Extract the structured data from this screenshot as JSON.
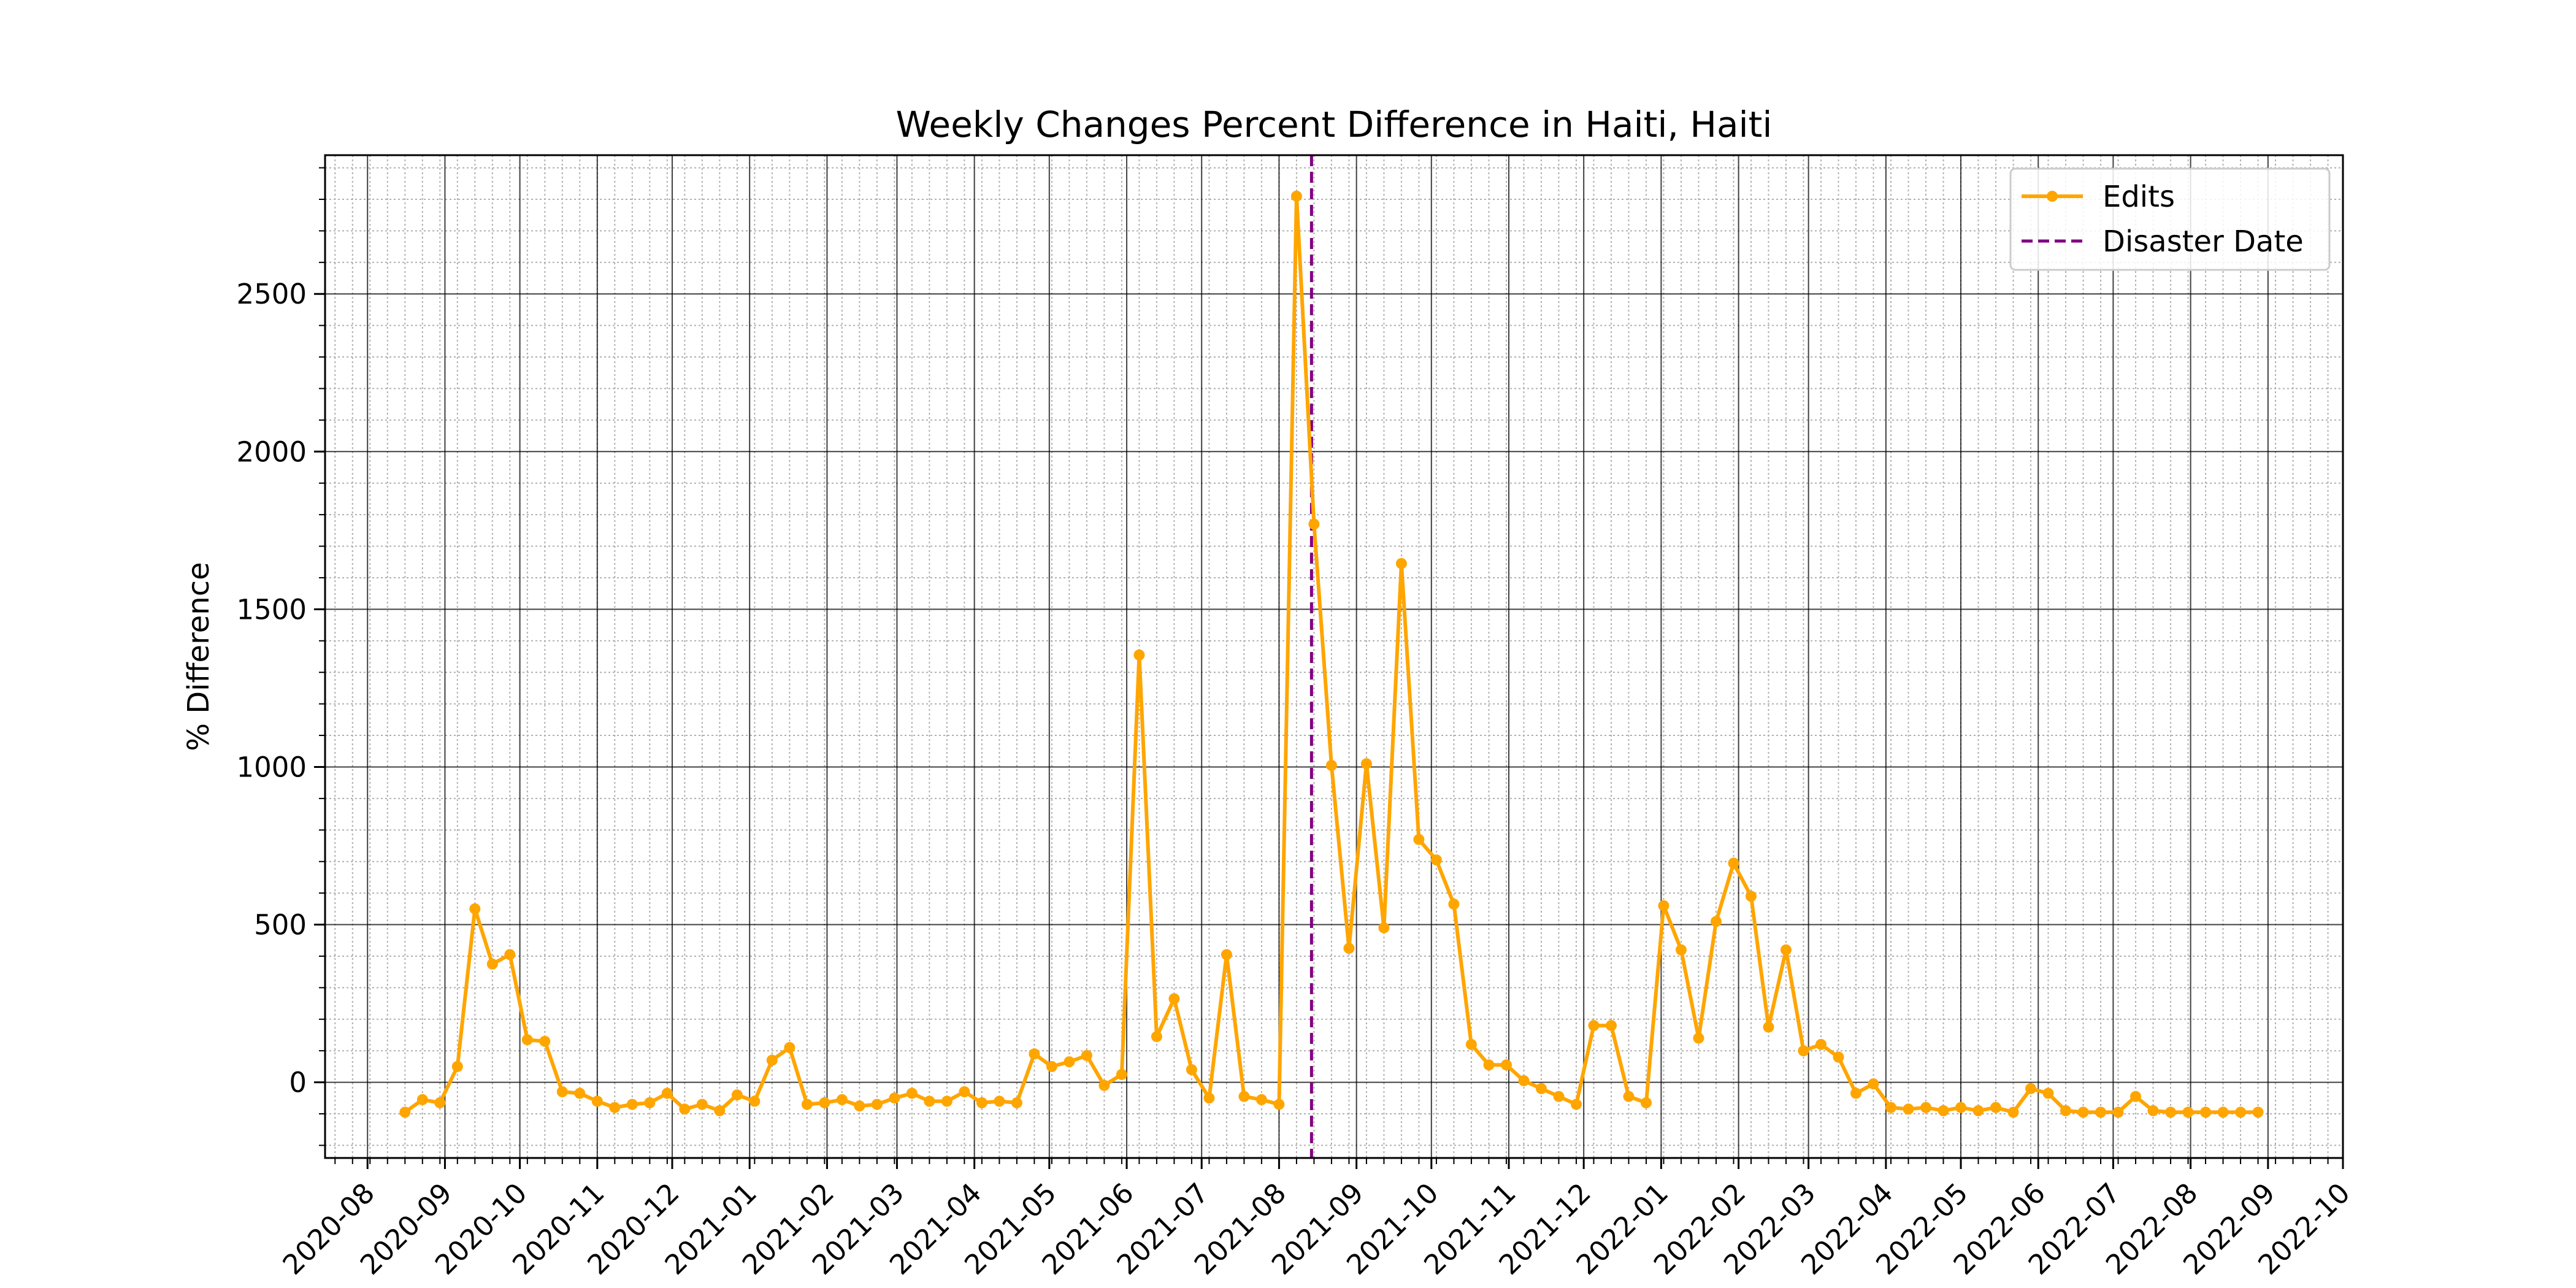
{
  "chart_data": {
    "type": "line",
    "title": "Weekly Changes Percent Difference in Haiti, Haiti",
    "xlabel": "",
    "ylabel": "% Difference",
    "x_axis_type": "date",
    "xlim": [
      "2020-07-15",
      "2022-10-01"
    ],
    "ylim": [
      -240,
      2940
    ],
    "x_ticks": [
      "2020-08",
      "2020-09",
      "2020-10",
      "2020-11",
      "2020-12",
      "2021-01",
      "2021-02",
      "2021-03",
      "2021-04",
      "2021-05",
      "2021-06",
      "2021-07",
      "2021-08",
      "2021-09",
      "2021-10",
      "2021-11",
      "2021-12",
      "2022-01",
      "2022-02",
      "2022-03",
      "2022-04",
      "2022-05",
      "2022-06",
      "2022-07",
      "2022-08",
      "2022-09",
      "2022-10"
    ],
    "y_ticks": [
      0,
      500,
      1000,
      1500,
      2000,
      2500
    ],
    "grid": true,
    "minor_grid": true,
    "legend_position": "top-right",
    "disaster": {
      "label": "Disaster Date",
      "date": "2021-08-14",
      "color": "#800080"
    },
    "series": [
      {
        "name": "Edits",
        "color": "#FFA500",
        "x": [
          "2020-08-16",
          "2020-08-23",
          "2020-08-30",
          "2020-09-06",
          "2020-09-13",
          "2020-09-20",
          "2020-09-27",
          "2020-10-04",
          "2020-10-11",
          "2020-10-18",
          "2020-10-25",
          "2020-11-01",
          "2020-11-08",
          "2020-11-15",
          "2020-11-22",
          "2020-11-29",
          "2020-12-06",
          "2020-12-13",
          "2020-12-20",
          "2020-12-27",
          "2021-01-03",
          "2021-01-10",
          "2021-01-17",
          "2021-01-24",
          "2021-01-31",
          "2021-02-07",
          "2021-02-14",
          "2021-02-21",
          "2021-02-28",
          "2021-03-07",
          "2021-03-14",
          "2021-03-21",
          "2021-03-28",
          "2021-04-04",
          "2021-04-11",
          "2021-04-18",
          "2021-04-25",
          "2021-05-02",
          "2021-05-09",
          "2021-05-16",
          "2021-05-23",
          "2021-05-30",
          "2021-06-06",
          "2021-06-13",
          "2021-06-20",
          "2021-06-27",
          "2021-07-04",
          "2021-07-11",
          "2021-07-18",
          "2021-07-25",
          "2021-08-01",
          "2021-08-08",
          "2021-08-15",
          "2021-08-22",
          "2021-08-29",
          "2021-09-05",
          "2021-09-12",
          "2021-09-19",
          "2021-09-26",
          "2021-10-03",
          "2021-10-10",
          "2021-10-17",
          "2021-10-24",
          "2021-10-31",
          "2021-11-07",
          "2021-11-14",
          "2021-11-21",
          "2021-11-28",
          "2021-12-05",
          "2021-12-12",
          "2021-12-19",
          "2021-12-26",
          "2022-01-02",
          "2022-01-09",
          "2022-01-16",
          "2022-01-23",
          "2022-01-30",
          "2022-02-06",
          "2022-02-13",
          "2022-02-20",
          "2022-02-27",
          "2022-03-06",
          "2022-03-13",
          "2022-03-20",
          "2022-03-27",
          "2022-04-03",
          "2022-04-10",
          "2022-04-17",
          "2022-04-24",
          "2022-05-01",
          "2022-05-08",
          "2022-05-15",
          "2022-05-22",
          "2022-05-29",
          "2022-06-05",
          "2022-06-12",
          "2022-06-19",
          "2022-06-26",
          "2022-07-03",
          "2022-07-10",
          "2022-07-17",
          "2022-07-24",
          "2022-07-31",
          "2022-08-07",
          "2022-08-14",
          "2022-08-21",
          "2022-08-28"
        ],
        "values": [
          -95,
          -55,
          -65,
          50,
          550,
          375,
          405,
          135,
          130,
          -30,
          -35,
          -60,
          -80,
          -70,
          -65,
          -35,
          -85,
          -70,
          -90,
          -40,
          -60,
          70,
          110,
          -70,
          -65,
          -55,
          -75,
          -70,
          -50,
          -35,
          -60,
          -60,
          -30,
          -65,
          -60,
          -65,
          90,
          50,
          65,
          85,
          -10,
          25,
          1355,
          145,
          265,
          40,
          -50,
          405,
          -45,
          -55,
          -70,
          2810,
          1770,
          1005,
          425,
          1010,
          490,
          1645,
          770,
          705,
          565,
          120,
          55,
          55,
          5,
          -20,
          -45,
          -70,
          180,
          180,
          -45,
          -65,
          560,
          420,
          140,
          510,
          695,
          590,
          175,
          420,
          100,
          120,
          80,
          -35,
          -5,
          -80,
          -85,
          -80,
          -90,
          -80,
          -90,
          -80,
          -95,
          -20,
          -35,
          -90,
          -95,
          -95,
          -95,
          -45,
          -90,
          -95,
          -95,
          -95,
          -95,
          -95,
          -95
        ]
      }
    ]
  }
}
